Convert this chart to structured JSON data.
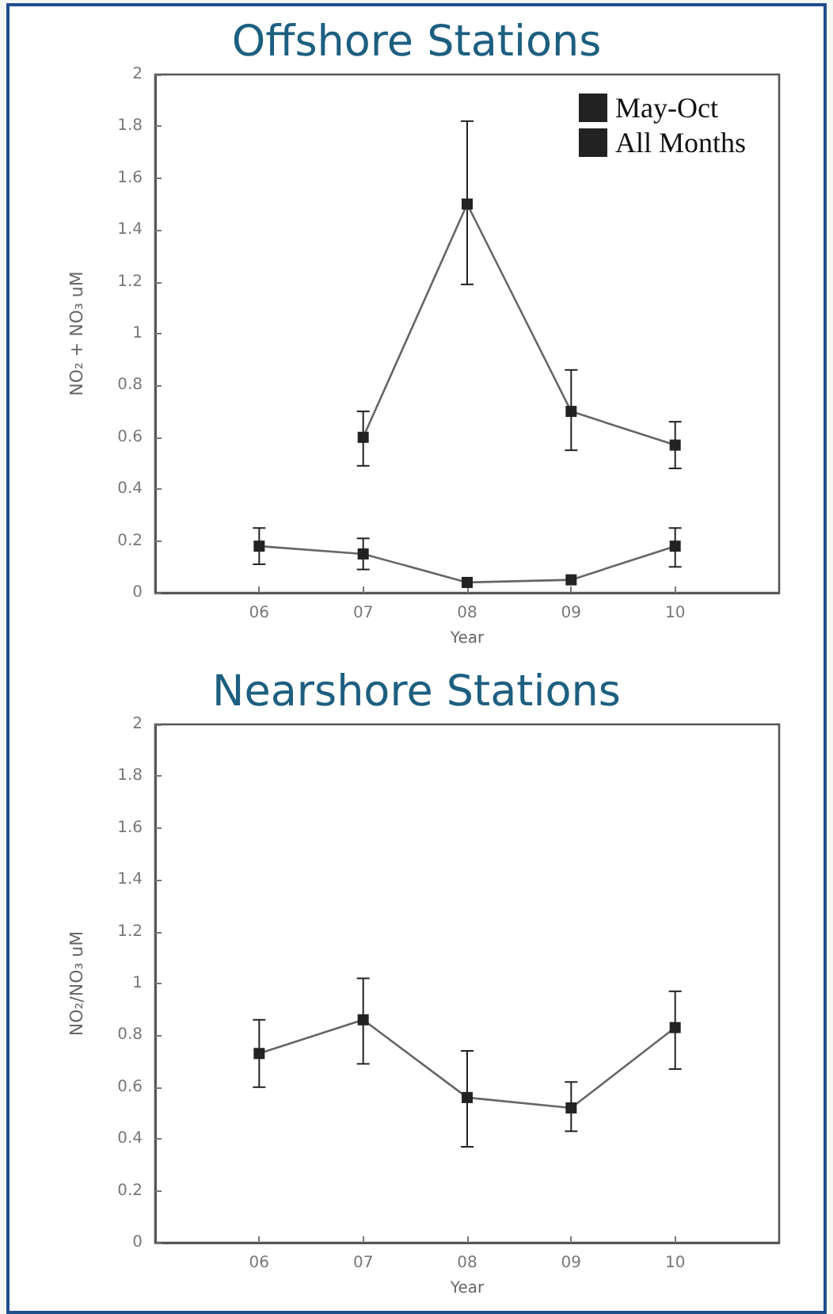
{
  "chart_data": [
    {
      "type": "line",
      "title": "Offshore Stations",
      "xlabel": "Year",
      "ylabel": "NO₂ + NO₃ uM",
      "x": [
        6,
        7,
        8,
        9,
        10
      ],
      "xlim": [
        5,
        11
      ],
      "xticks": [
        {
          "value": 6,
          "label": "06"
        },
        {
          "value": 7,
          "label": "07"
        },
        {
          "value": 8,
          "label": "08"
        },
        {
          "value": 9,
          "label": "09"
        },
        {
          "value": 10,
          "label": "10"
        }
      ],
      "ylim": [
        0,
        2
      ],
      "yticks": [
        0,
        0.2,
        0.4,
        0.6,
        0.8,
        1,
        1.2,
        1.4,
        1.6,
        1.8,
        2
      ],
      "grid": false,
      "legend": "top right",
      "marker": "square",
      "line_style": "solid",
      "series": [
        {
          "name": "May-Oct",
          "color": "#222222",
          "values": [
            null,
            0.6,
            1.5,
            0.7,
            0.57
          ],
          "errors": [
            null,
            [
              0.49,
              0.7
            ],
            [
              1.19,
              1.82
            ],
            [
              0.55,
              0.86
            ],
            [
              0.48,
              0.66
            ]
          ]
        },
        {
          "name": "All Months",
          "color": "#222222",
          "values": [
            0.18,
            0.15,
            0.04,
            0.05,
            0.18
          ],
          "errors": [
            [
              0.11,
              0.25
            ],
            [
              0.09,
              0.21
            ],
            null,
            null,
            [
              0.1,
              0.25
            ]
          ]
        }
      ]
    },
    {
      "type": "line",
      "title": "Nearshore Stations",
      "xlabel": "Year",
      "ylabel": "NO₂/NO₃ uM",
      "x": [
        6,
        7,
        8,
        9,
        10
      ],
      "xlim": [
        5,
        11
      ],
      "xticks": [
        {
          "value": 6,
          "label": "06"
        },
        {
          "value": 7,
          "label": "07"
        },
        {
          "value": 8,
          "label": "08"
        },
        {
          "value": 9,
          "label": "09"
        },
        {
          "value": 10,
          "label": "10"
        }
      ],
      "ylim": [
        0,
        2
      ],
      "yticks": [
        0,
        0.2,
        0.4,
        0.6,
        0.8,
        1,
        1.2,
        1.4,
        1.6,
        1.8,
        2
      ],
      "grid": false,
      "marker": "square",
      "line_style": "solid",
      "series": [
        {
          "color": "#222222",
          "values": [
            0.73,
            0.86,
            0.56,
            0.52,
            0.83
          ],
          "errors": [
            [
              0.6,
              0.86
            ],
            [
              0.69,
              1.02
            ],
            [
              0.37,
              0.74
            ],
            [
              0.43,
              0.62
            ],
            [
              0.67,
              0.97
            ]
          ]
        }
      ]
    }
  ]
}
